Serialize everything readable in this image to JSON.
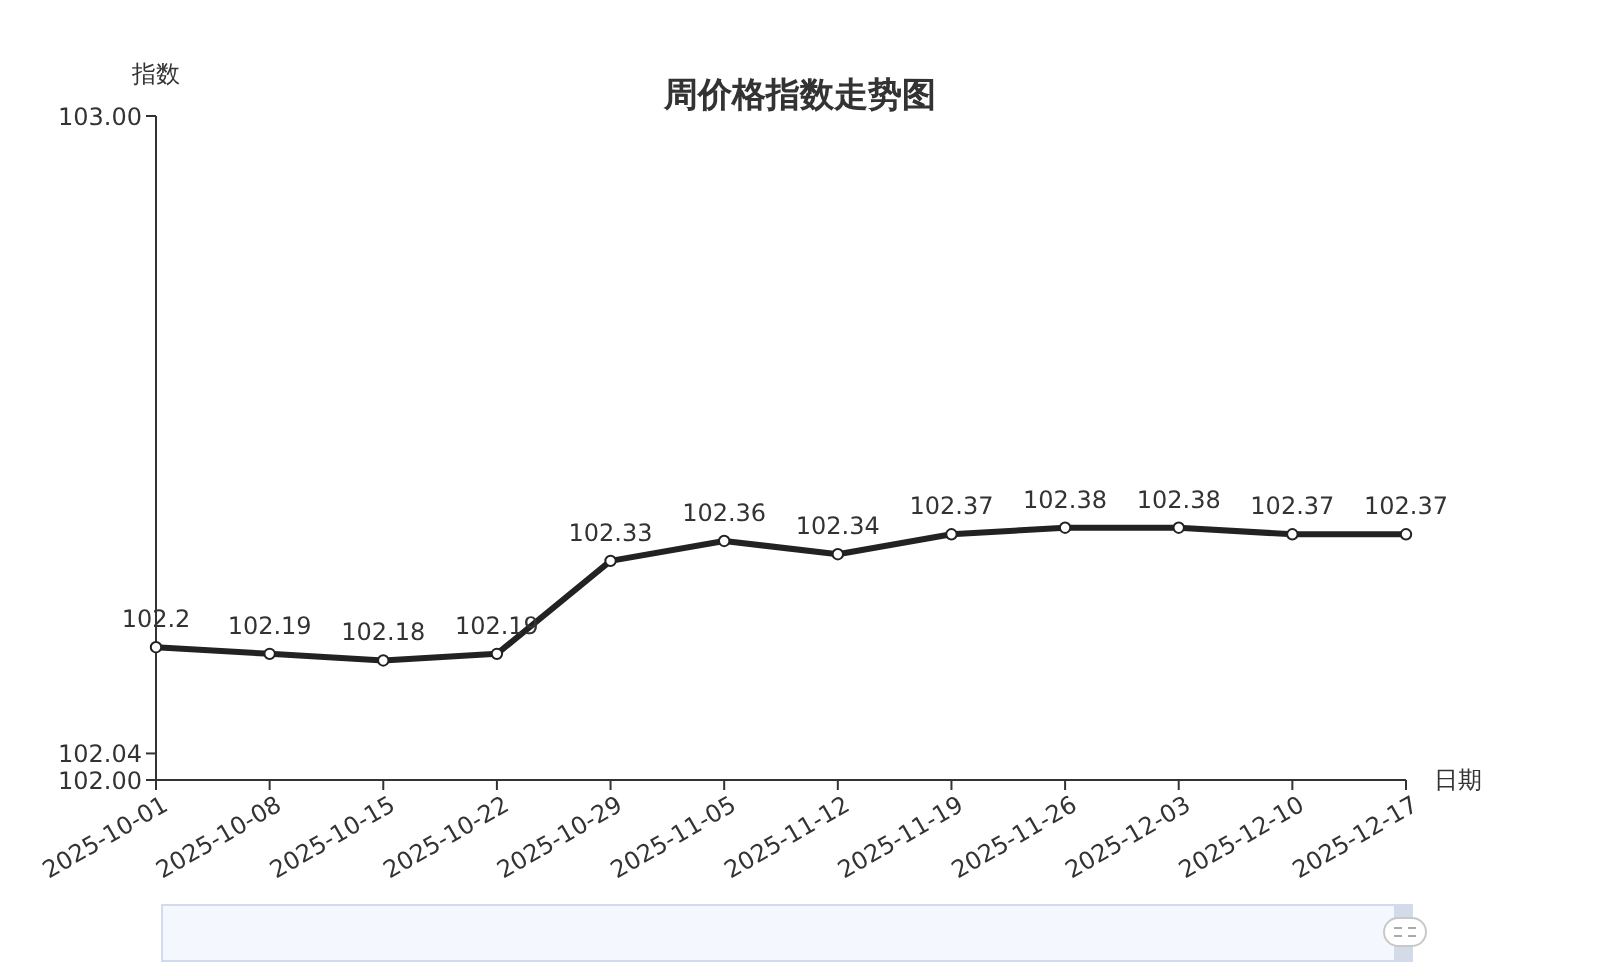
{
  "chart_data": {
    "type": "line",
    "title": "周价格指数走势图",
    "xlabel": "日期",
    "ylabel": "指数",
    "categories": [
      "2025-10-01",
      "2025-10-08",
      "2025-10-15",
      "2025-10-22",
      "2025-10-29",
      "2025-11-05",
      "2025-11-12",
      "2025-11-19",
      "2025-11-26",
      "2025-12-03",
      "2025-12-10",
      "2025-12-17"
    ],
    "series": [
      {
        "color": "#222222",
        "values": [
          102.2,
          102.19,
          102.18,
          102.19,
          102.33,
          102.36,
          102.34,
          102.37,
          102.38,
          102.38,
          102.37,
          102.37
        ]
      }
    ],
    "ylim": [
      102,
      103
    ],
    "yticks": [
      {
        "value": 102,
        "label": "102.00"
      },
      {
        "value": 102.04,
        "label": "102.04"
      },
      {
        "value": 103,
        "label": "103.00"
      }
    ],
    "data_labels": true,
    "marker": "circle",
    "line_style": "solid"
  }
}
